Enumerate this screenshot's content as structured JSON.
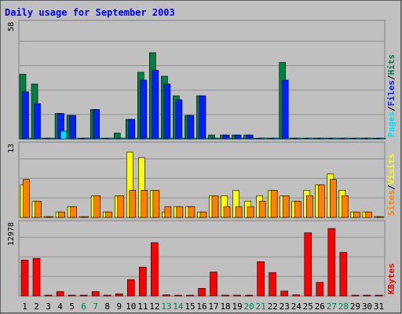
{
  "title": "Daily usage for September 2003",
  "colors": {
    "background": "#c0c0c0",
    "title": "#0000ff",
    "hits": "#008040",
    "files": "#0020ff",
    "pages": "#00e0ff",
    "visits": "#ffff00",
    "sites": "#ff8000",
    "kbytes": "#ff0000",
    "weekend_label": "#00805c",
    "weekday_label": "#000000"
  },
  "chart_data": [
    {
      "type": "bar",
      "panel": "hits-files-pages",
      "ymax_label": "58",
      "ylim": [
        0,
        58
      ],
      "side_label": [
        "Pages",
        "/",
        "Files",
        "/",
        "Hits"
      ],
      "x": [
        1,
        2,
        3,
        4,
        5,
        6,
        7,
        8,
        9,
        10,
        11,
        12,
        13,
        14,
        15,
        16,
        17,
        18,
        19,
        20,
        21,
        22,
        23,
        24,
        25,
        26,
        27,
        28,
        29,
        30,
        31
      ],
      "series": [
        {
          "name": "Hits",
          "values": [
            33,
            28,
            0,
            13,
            12,
            0,
            15,
            0,
            3,
            10,
            34,
            44,
            32,
            22,
            12,
            22,
            2,
            2,
            2,
            2,
            0,
            0,
            39,
            0,
            0,
            0,
            0,
            0,
            0,
            0,
            0
          ]
        },
        {
          "name": "Files",
          "values": [
            24,
            18,
            0,
            13,
            12,
            0,
            15,
            0,
            0,
            10,
            30,
            35,
            28,
            20,
            12,
            22,
            0,
            2,
            2,
            2,
            0,
            0,
            30,
            0,
            0,
            0,
            0,
            0,
            0,
            0,
            0
          ]
        },
        {
          "name": "Pages",
          "values": [
            0,
            0,
            0,
            4,
            0,
            0,
            0,
            0,
            0,
            0,
            0,
            0,
            0,
            0,
            0,
            0,
            0,
            0,
            0,
            0,
            0,
            0,
            0,
            0,
            0,
            0,
            0,
            0,
            0,
            0,
            0
          ]
        }
      ]
    },
    {
      "type": "bar",
      "panel": "visits-sites",
      "ymax_label": "13",
      "ylim": [
        0,
        13
      ],
      "side_label": [
        "Sites",
        "/",
        "Visits"
      ],
      "x": [
        1,
        2,
        3,
        4,
        5,
        6,
        7,
        8,
        9,
        10,
        11,
        12,
        13,
        14,
        15,
        16,
        17,
        18,
        19,
        20,
        21,
        22,
        23,
        24,
        25,
        26,
        27,
        28,
        29,
        30,
        31
      ],
      "series": [
        {
          "name": "Visits",
          "values": [
            6,
            3,
            0,
            1,
            2,
            0,
            4,
            1,
            4,
            12,
            11,
            5,
            1,
            2,
            2,
            1,
            4,
            4,
            5,
            3,
            4,
            5,
            4,
            3,
            5,
            6,
            8,
            5,
            1,
            1,
            0
          ]
        },
        {
          "name": "Sites",
          "values": [
            7,
            3,
            0,
            1,
            2,
            0,
            4,
            1,
            4,
            5,
            5,
            5,
            2,
            2,
            2,
            1,
            4,
            2,
            2,
            2,
            3,
            5,
            4,
            3,
            4,
            6,
            7,
            4,
            1,
            1,
            0
          ]
        }
      ]
    },
    {
      "type": "bar",
      "panel": "kbytes",
      "ymax_label": "12978",
      "ylim": [
        0,
        12978
      ],
      "side_label": [
        "KBytes"
      ],
      "x": [
        1,
        2,
        3,
        4,
        5,
        6,
        7,
        8,
        9,
        10,
        11,
        12,
        13,
        14,
        15,
        16,
        17,
        18,
        19,
        20,
        21,
        22,
        23,
        24,
        25,
        26,
        27,
        28,
        29,
        30,
        31
      ],
      "series": [
        {
          "name": "KBytes",
          "values": [
            6600,
            6900,
            0,
            800,
            150,
            0,
            800,
            0,
            400,
            3000,
            5300,
            9800,
            200,
            100,
            80,
            1400,
            4400,
            150,
            100,
            100,
            6300,
            4300,
            900,
            200,
            11600,
            2500,
            12400,
            8000,
            100,
            100,
            0
          ]
        }
      ]
    }
  ],
  "x_labels": [
    "1",
    "2",
    "3",
    "4",
    "5",
    "6",
    "7",
    "8",
    "9",
    "10",
    "11",
    "12",
    "13",
    "14",
    "15",
    "16",
    "17",
    "18",
    "19",
    "20",
    "21",
    "22",
    "23",
    "24",
    "25",
    "26",
    "27",
    "28",
    "29",
    "30",
    "31"
  ],
  "weekend_days": [
    6,
    7,
    13,
    14,
    20,
    21,
    27,
    28
  ]
}
